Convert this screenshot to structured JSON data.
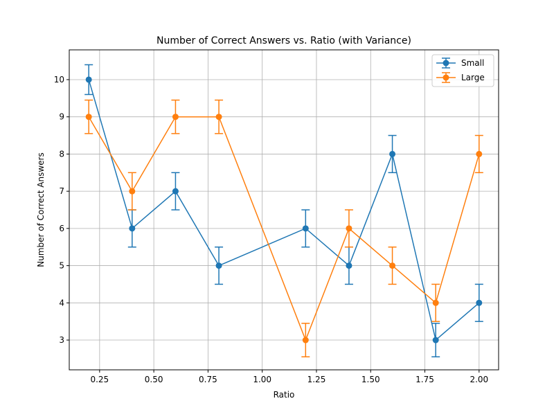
{
  "chart_data": {
    "type": "line",
    "title": "Number of Correct Answers vs. Ratio (with Variance)",
    "xlabel": "Ratio",
    "ylabel": "Number of Correct Answers",
    "xlim": [
      0.11,
      2.09
    ],
    "ylim": [
      2.2,
      10.8
    ],
    "xticks": [
      0.25,
      0.5,
      0.75,
      1.0,
      1.25,
      1.5,
      1.75,
      2.0
    ],
    "xtick_labels": [
      "0.25",
      "0.50",
      "0.75",
      "1.00",
      "1.25",
      "1.50",
      "1.75",
      "2.00"
    ],
    "yticks": [
      3,
      4,
      5,
      6,
      7,
      8,
      9,
      10
    ],
    "ytick_labels": [
      "3",
      "4",
      "5",
      "6",
      "7",
      "8",
      "9",
      "10"
    ],
    "grid": true,
    "legend_position": "top-right",
    "series": [
      {
        "name": "Small",
        "color": "#1f77b4",
        "marker": "circle",
        "points": [
          {
            "x": 0.2,
            "y": 10,
            "err": 0.4
          },
          {
            "x": 0.4,
            "y": 6,
            "err": 0.5
          },
          {
            "x": 0.6,
            "y": 7,
            "err": 0.5
          },
          {
            "x": 0.8,
            "y": 5,
            "err": 0.5
          },
          {
            "x": 1.2,
            "y": 6,
            "err": 0.5
          },
          {
            "x": 1.4,
            "y": 5,
            "err": 0.5
          },
          {
            "x": 1.6,
            "y": 8,
            "err": 0.5
          },
          {
            "x": 1.8,
            "y": 3,
            "err": 0.45
          },
          {
            "x": 2.0,
            "y": 4,
            "err": 0.5
          }
        ]
      },
      {
        "name": "Large",
        "color": "#ff7f0e",
        "marker": "circle",
        "points": [
          {
            "x": 0.2,
            "y": 9,
            "err": 0.45
          },
          {
            "x": 0.4,
            "y": 7,
            "err": 0.5
          },
          {
            "x": 0.6,
            "y": 9,
            "err": 0.45
          },
          {
            "x": 0.8,
            "y": 9,
            "err": 0.45
          },
          {
            "x": 1.2,
            "y": 3,
            "err": 0.45
          },
          {
            "x": 1.4,
            "y": 6,
            "err": 0.5
          },
          {
            "x": 1.6,
            "y": 5,
            "err": 0.5
          },
          {
            "x": 1.8,
            "y": 4,
            "err": 0.5
          },
          {
            "x": 2.0,
            "y": 8,
            "err": 0.5
          }
        ]
      }
    ]
  }
}
